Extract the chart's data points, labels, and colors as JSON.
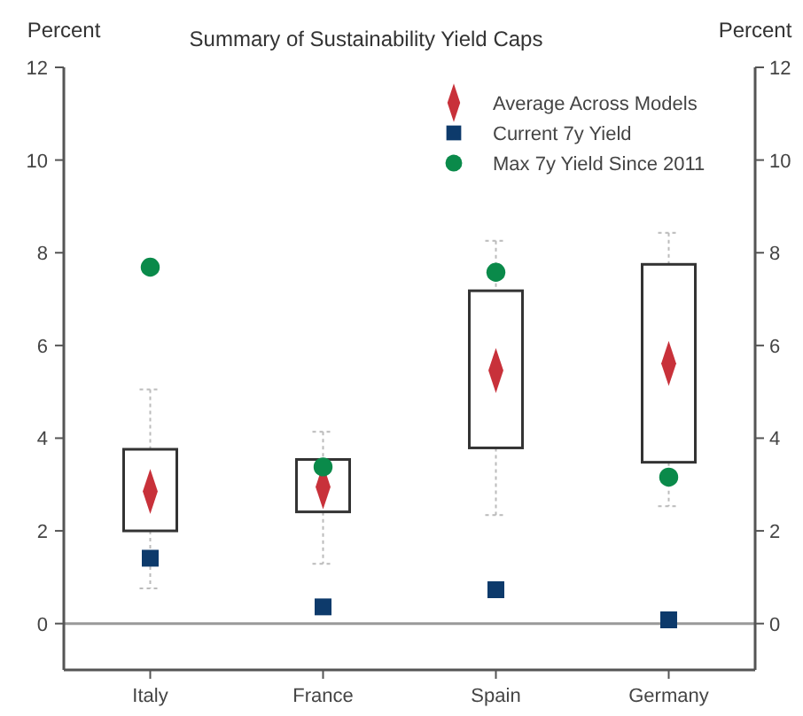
{
  "chart_data": {
    "type": "box",
    "title": "Summary of Sustainability Yield Caps",
    "ylabel": "Percent",
    "y2label": "Percent",
    "categories": [
      "Italy",
      "France",
      "Spain",
      "Germany"
    ],
    "boxes": [
      {
        "low": 0.76,
        "q1": 2.0,
        "q3": 3.76,
        "high": 5.05
      },
      {
        "low": 1.29,
        "q1": 2.41,
        "q3": 3.54,
        "high": 4.14
      },
      {
        "low": 2.34,
        "q1": 3.79,
        "q3": 7.18,
        "high": 8.26
      },
      {
        "low": 2.53,
        "q1": 3.48,
        "q3": 7.75,
        "high": 8.43
      }
    ],
    "series": [
      {
        "name": "Average Across Models",
        "type": "scatter",
        "marker": "diamond",
        "color": "#c8313a",
        "x": [
          "Italy",
          "France",
          "Spain",
          "Germany"
        ],
        "values": [
          2.85,
          2.95,
          5.46,
          5.61
        ]
      },
      {
        "name": "Current 7y Yield",
        "type": "scatter",
        "marker": "square",
        "color": "#0d3a6b",
        "x": [
          "Italy",
          "France",
          "Spain",
          "Germany"
        ],
        "values": [
          1.41,
          0.36,
          0.73,
          0.08
        ]
      },
      {
        "name": "Max 7y Yield Since 2011",
        "type": "scatter",
        "marker": "circle",
        "color": "#0a8a4a",
        "x": [
          "Italy",
          "France",
          "Spain",
          "Germany"
        ],
        "values": [
          7.69,
          3.38,
          7.58,
          3.16
        ]
      }
    ],
    "ylim": [
      -1,
      12
    ],
    "yticks": [
      0,
      2,
      4,
      6,
      8,
      10,
      12
    ],
    "y2lim": [
      -1,
      12
    ],
    "y2ticks": [
      0,
      2,
      4,
      6,
      8,
      10,
      12
    ],
    "ref_lines": [
      {
        "axis": "y",
        "value": 0,
        "color": "#999999"
      }
    ],
    "legend": "top right",
    "grid": false
  }
}
